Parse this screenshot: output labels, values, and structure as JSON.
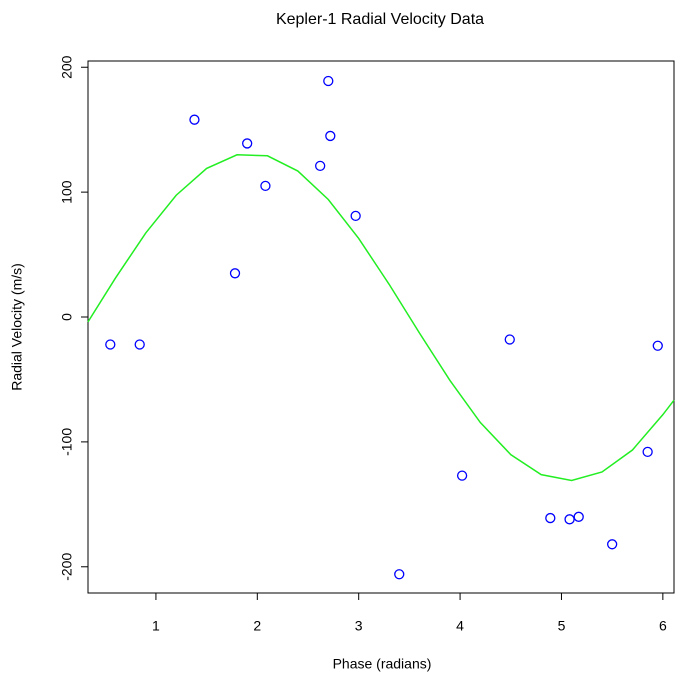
{
  "chart_data": {
    "type": "scatter",
    "title": "Kepler-1 Radial Velocity Data",
    "x_label": "Phase (radians)",
    "y_label": "Radial Velocity (m/s)",
    "xlim": [
      0.33,
      6.11
    ],
    "ylim": [
      -221,
      205
    ],
    "xticks": [
      1,
      2,
      3,
      4,
      5,
      6
    ],
    "yticks": [
      -200,
      -100,
      0,
      100,
      200
    ],
    "points": {
      "color": "#0000ff",
      "x": [
        0.55,
        0.84,
        1.38,
        1.9,
        1.78,
        2.08,
        2.7,
        2.72,
        2.62,
        2.97,
        3.4,
        4.02,
        4.49,
        4.89,
        5.08,
        5.17,
        5.5,
        5.85,
        5.95
      ],
      "values": [
        -22,
        -22,
        158,
        139,
        35,
        105,
        189,
        145,
        121,
        81,
        -206,
        -127,
        -18,
        -161,
        -162,
        -160,
        -182,
        -108,
        -23
      ]
    },
    "curve": {
      "color": "#22ee22",
      "x": [
        0.33,
        0.6,
        0.9,
        1.2,
        1.5,
        1.8,
        2.1,
        2.4,
        2.7,
        3.0,
        3.3,
        3.6,
        3.9,
        4.2,
        4.5,
        4.8,
        5.1,
        5.4,
        5.7,
        6.0,
        6.11
      ],
      "values": [
        -3.9,
        31.1,
        67.3,
        97.5,
        119.0,
        129.9,
        129.1,
        116.9,
        94.1,
        62.9,
        26.2,
        -12.9,
        -50.8,
        -84.5,
        -110.2,
        -126.2,
        -130.9,
        -124.1,
        -106.5,
        -78.2,
        -66.6
      ]
    }
  }
}
